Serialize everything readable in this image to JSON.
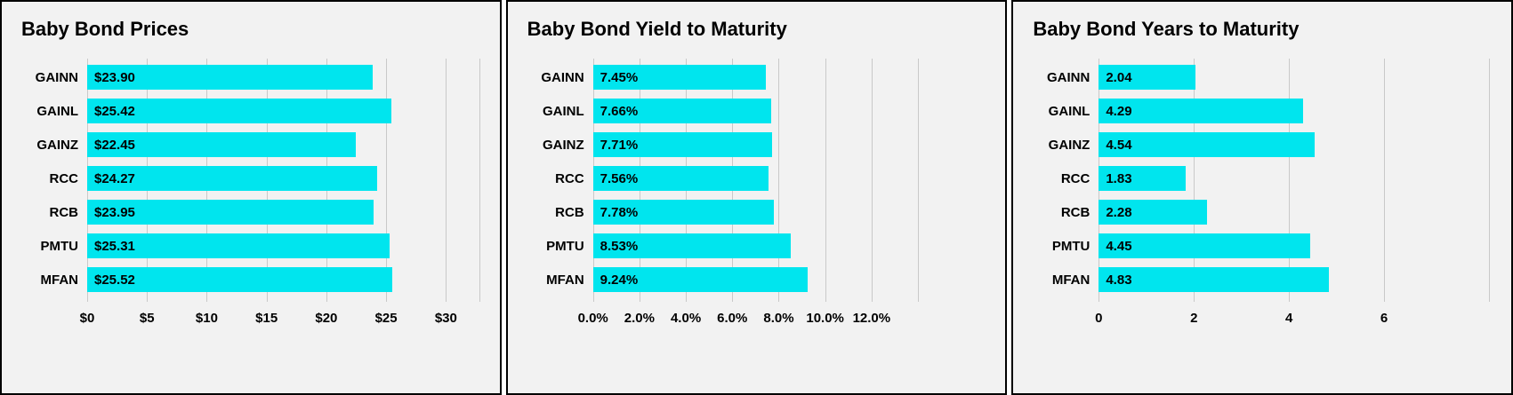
{
  "colors": {
    "bar": "#00e5ee",
    "panel_bg": "#f2f2f2",
    "panel_border": "#000000",
    "grid": "#c9c9c9",
    "text": "#000000"
  },
  "chart_data": [
    {
      "type": "bar",
      "orientation": "horizontal",
      "title": "Baby Bond Prices",
      "categories": [
        "GAINN",
        "GAINL",
        "GAINZ",
        "RCC",
        "RCB",
        "PMTU",
        "MFAN"
      ],
      "values": [
        23.9,
        25.42,
        22.45,
        24.27,
        23.95,
        25.31,
        25.52
      ],
      "value_labels": [
        "$23.90",
        "$25.42",
        "$22.45",
        "$24.27",
        "$23.95",
        "$25.31",
        "$25.52"
      ],
      "xlim": [
        0,
        33
      ],
      "ticks": [
        0,
        5,
        10,
        15,
        20,
        25,
        30
      ],
      "tick_labels": [
        "$0",
        "$5",
        "$10",
        "$15",
        "$20",
        "$25",
        "$30"
      ],
      "gridlines": [
        0,
        5,
        10,
        15,
        20,
        25,
        30,
        32.8
      ],
      "bar_color": "#00e5ee",
      "grid": true,
      "legend": false
    },
    {
      "type": "bar",
      "orientation": "horizontal",
      "title": "Baby Bond Yield to Maturity",
      "categories": [
        "GAINN",
        "GAINL",
        "GAINZ",
        "RCC",
        "RCB",
        "PMTU",
        "MFAN"
      ],
      "values": [
        7.45,
        7.66,
        7.71,
        7.56,
        7.78,
        8.53,
        9.24
      ],
      "value_labels": [
        "7.45%",
        "7.66%",
        "7.71%",
        "7.56%",
        "7.78%",
        "8.53%",
        "9.24%"
      ],
      "xlim": [
        0,
        17
      ],
      "ticks": [
        0,
        2,
        4,
        6,
        8,
        10,
        12
      ],
      "tick_labels": [
        "0.0%",
        "2.0%",
        "4.0%",
        "6.0%",
        "8.0%",
        "10.0%",
        "12.0%"
      ],
      "gridlines": [
        0,
        2,
        4,
        6,
        8,
        10,
        12,
        14
      ],
      "bar_color": "#00e5ee",
      "grid": true,
      "legend": false
    },
    {
      "type": "bar",
      "orientation": "horizontal",
      "title": "Baby Bond Years to Maturity",
      "categories": [
        "GAINN",
        "GAINL",
        "GAINZ",
        "RCC",
        "RCB",
        "PMTU",
        "MFAN"
      ],
      "values": [
        2.04,
        4.29,
        4.54,
        1.83,
        2.28,
        4.45,
        4.83
      ],
      "value_labels": [
        "2.04",
        "4.29",
        "4.54",
        "1.83",
        "2.28",
        "4.45",
        "4.83"
      ],
      "xlim": [
        0,
        8.3
      ],
      "ticks": [
        0,
        2,
        4,
        6
      ],
      "tick_labels": [
        "0",
        "2",
        "4",
        "6"
      ],
      "gridlines": [
        0,
        2,
        4,
        6,
        8.2
      ],
      "bar_color": "#00e5ee",
      "grid": true,
      "legend": false
    }
  ]
}
